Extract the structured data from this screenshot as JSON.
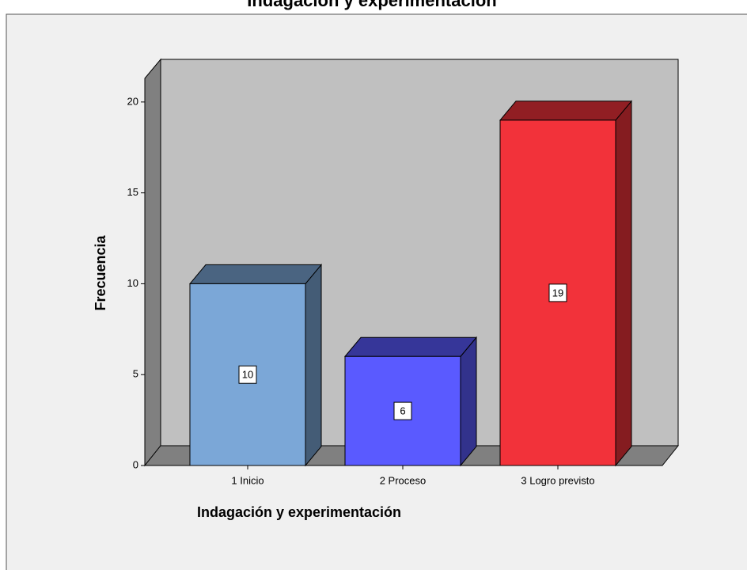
{
  "chart_data": {
    "type": "bar",
    "title": "Indagación y experimentación",
    "xlabel": "Indagación y experimentación",
    "ylabel": "Frecuencia",
    "categories": [
      "1 Inicio",
      "2 Proceso",
      "3 Logro previsto"
    ],
    "values": [
      10,
      6,
      19
    ],
    "colors": [
      "#7ba7d7",
      "#5a5aff",
      "#f2323a"
    ],
    "ylim": [
      0,
      21.3
    ],
    "yticks": [
      0,
      5,
      10,
      15,
      20
    ],
    "grid": false
  }
}
